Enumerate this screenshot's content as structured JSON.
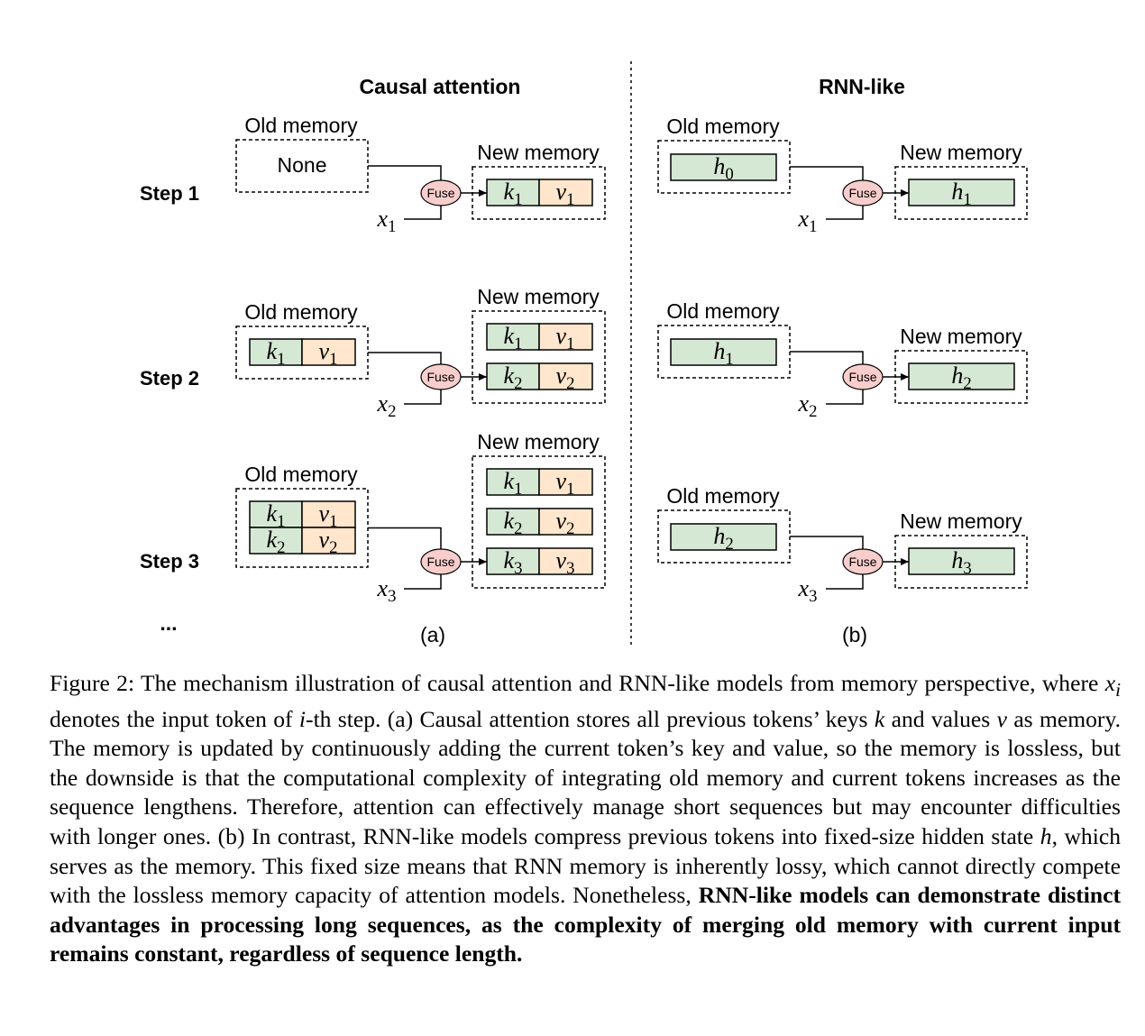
{
  "figure": {
    "left_title": "Causal attention",
    "right_title": "RNN-like",
    "old_memory_label": "Old memory",
    "new_memory_label": "New memory",
    "none_label": "None",
    "fuse_label": "Fuse",
    "panel_a_label": "(a)",
    "panel_b_label": "(b)",
    "ellipsis": "...",
    "steps": [
      {
        "label": "Step 1",
        "input": {
          "base": "x",
          "sub": "1"
        },
        "attention_old": [],
        "attention_new": [
          {
            "k": "1",
            "v": "1"
          }
        ],
        "rnn_old": {
          "base": "h",
          "sub": "0"
        },
        "rnn_new": {
          "base": "h",
          "sub": "1"
        }
      },
      {
        "label": "Step 2",
        "input": {
          "base": "x",
          "sub": "2"
        },
        "attention_old": [
          {
            "k": "1",
            "v": "1"
          }
        ],
        "attention_new": [
          {
            "k": "1",
            "v": "1"
          },
          {
            "k": "2",
            "v": "2"
          }
        ],
        "rnn_old": {
          "base": "h",
          "sub": "1"
        },
        "rnn_new": {
          "base": "h",
          "sub": "2"
        }
      },
      {
        "label": "Step 3",
        "input": {
          "base": "x",
          "sub": "3"
        },
        "attention_old": [
          {
            "k": "1",
            "v": "1"
          },
          {
            "k": "2",
            "v": "2"
          }
        ],
        "attention_new": [
          {
            "k": "1",
            "v": "1"
          },
          {
            "k": "2",
            "v": "2"
          },
          {
            "k": "3",
            "v": "3"
          }
        ],
        "rnn_old": {
          "base": "h",
          "sub": "2"
        },
        "rnn_new": {
          "base": "h",
          "sub": "3"
        }
      }
    ],
    "colors": {
      "key_fill": "#d5e8d4",
      "value_fill": "#ffe6cc",
      "fuse_fill": "#f8cecc",
      "stroke": "#000000"
    }
  },
  "caption": {
    "label": "Figure 2:",
    "s1": "The mechanism illustration of causal attention and RNN-like models from memory perspective, where",
    "var_x": "x",
    "sub_i": "i",
    "s2": "denotes the input token of",
    "var_i": "i",
    "s3": "-th step. (a) Causal attention stores all previous tokens’ keys",
    "var_k": "k",
    "s4": "and values",
    "var_v": "v",
    "s5": "as memory.  The memory is updated by continuously adding the current token’s key and value, so the memory is lossless, but the downside is that the computational complexity of integrating old memory and current tokens increases as the sequence lengthens. Therefore, attention can effectively manage short sequences but may encounter difficulties with longer ones.  (b) In contrast, RNN-like models compress previous tokens into fixed-size hidden state",
    "var_h": "h",
    "s6": ", which serves as the memory. This fixed size means that RNN memory is inherently lossy, which cannot directly compete with the lossless memory capacity of attention models. Nonetheless,",
    "bold": "RNN-like models can demonstrate distinct advantages in processing long sequences, as the complexity of merging old memory with current input remains constant, regardless of sequence length."
  }
}
